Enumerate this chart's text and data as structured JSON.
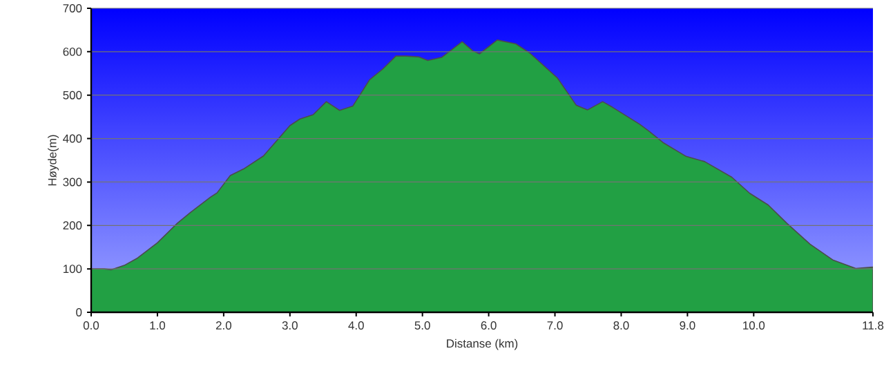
{
  "chart_data": {
    "type": "area",
    "xlabel": "Distanse  (km)",
    "ylabel": "Høyde(m)",
    "x": [
      0,
      0.2,
      0.3,
      0.5,
      0.7,
      1.0,
      1.3,
      1.5,
      1.8,
      1.9,
      2.1,
      2.3,
      2.6,
      2.8,
      3.0,
      3.15,
      3.35,
      3.55,
      3.75,
      3.95,
      4.2,
      4.4,
      4.6,
      4.75,
      4.95,
      5.08,
      5.29,
      5.6,
      5.76,
      5.86,
      6.13,
      6.41,
      6.62,
      7.04,
      7.32,
      7.49,
      7.72,
      7.87,
      8.28,
      8.42,
      8.63,
      8.98,
      9.26,
      9.67,
      9.94,
      10.22,
      10.5,
      10.85,
      11.2,
      11.54,
      11.8
    ],
    "series": [
      {
        "color": "#22a044",
        "values": [
          100,
          100,
          98,
          108,
          125,
          160,
          205,
          230,
          265,
          275,
          315,
          330,
          360,
          395,
          430,
          445,
          455,
          485,
          465,
          475,
          535,
          560,
          590,
          590,
          588,
          580,
          587,
          623,
          602,
          595,
          627,
          618,
          597,
          539,
          477,
          466,
          485,
          472,
          433,
          417,
          391,
          359,
          347,
          311,
          274,
          247,
          205,
          157,
          120,
          101,
          104
        ]
      }
    ],
    "xlim": [
      0,
      11.8
    ],
    "ylim": [
      0,
      700
    ],
    "xticks": [
      {
        "value": 0,
        "label": "0.0"
      },
      {
        "value": 1,
        "label": "1.0"
      },
      {
        "value": 2,
        "label": "2.0"
      },
      {
        "value": 3,
        "label": "3.0"
      },
      {
        "value": 4,
        "label": "4.0"
      },
      {
        "value": 5,
        "label": "5.0"
      },
      {
        "value": 6,
        "label": "6.0"
      },
      {
        "value": 7,
        "label": "7.0"
      },
      {
        "value": 8,
        "label": "8.0"
      },
      {
        "value": 9,
        "label": "9.0"
      },
      {
        "value": 10,
        "label": "10.0"
      },
      {
        "value": 11.8,
        "label": "11.8"
      }
    ],
    "yticks": [
      0,
      100,
      200,
      300,
      400,
      500,
      600,
      700
    ],
    "grid": "y"
  }
}
